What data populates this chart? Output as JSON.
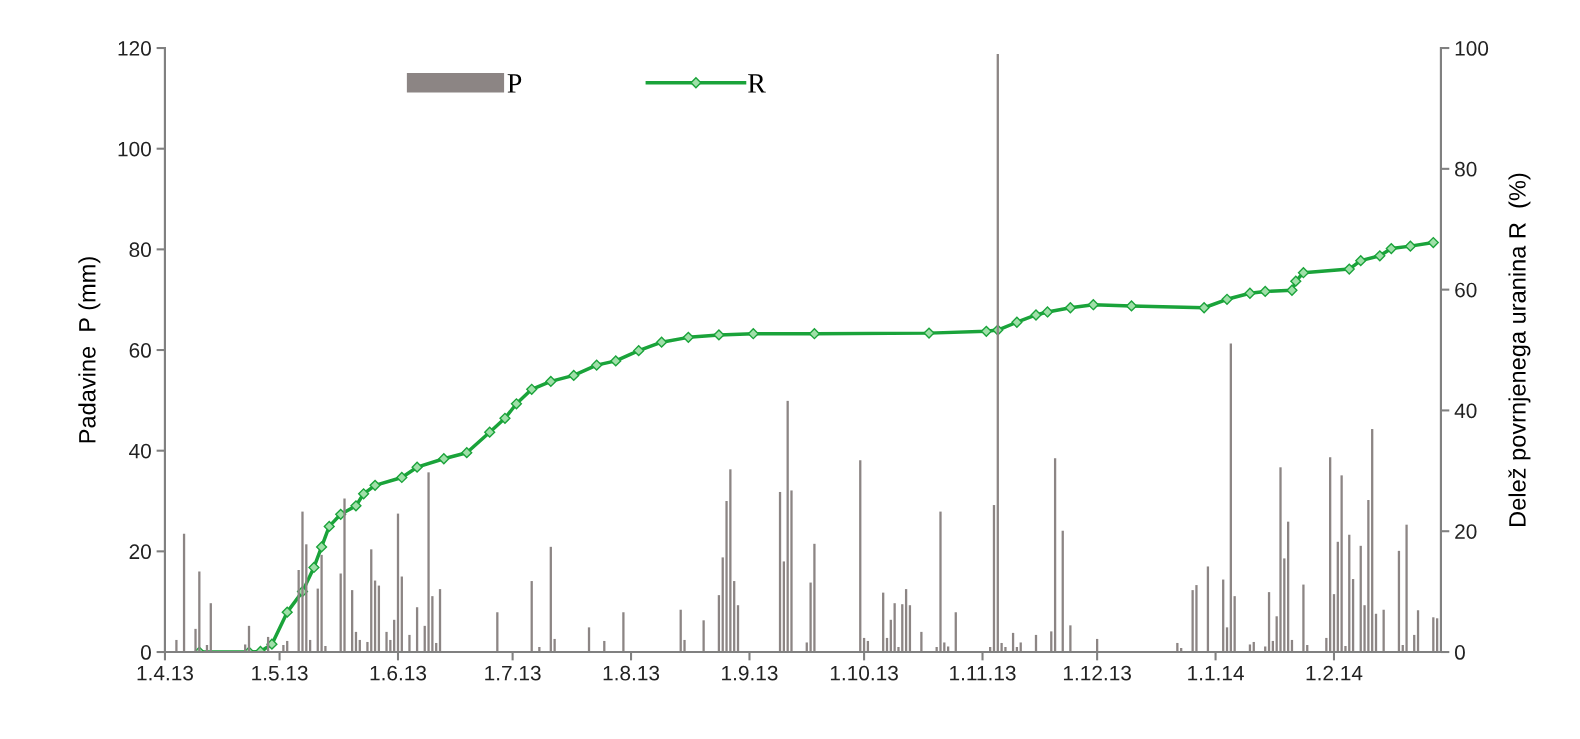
{
  "chart_data": {
    "type": "bar",
    "ylabel": "Padavine  P (mm)",
    "y2label": "Delež povrnjenega uranina R  (%)",
    "xlim": [
      "2013-04-01",
      "2014-03-01"
    ],
    "xticks": [
      {
        "value": "2013-04-01",
        "label": "1.4.13"
      },
      {
        "value": "2013-05-01",
        "label": "1.5.13"
      },
      {
        "value": "2013-06-01",
        "label": "1.6.13"
      },
      {
        "value": "2013-07-01",
        "label": "1.7.13"
      },
      {
        "value": "2013-08-01",
        "label": "1.8.13"
      },
      {
        "value": "2013-09-01",
        "label": "1.9.13"
      },
      {
        "value": "2013-10-01",
        "label": "1.10.13"
      },
      {
        "value": "2013-11-01",
        "label": "1.11.13"
      },
      {
        "value": "2013-12-01",
        "label": "1.12.13"
      },
      {
        "value": "2014-01-01",
        "label": "1.1.14"
      },
      {
        "value": "2014-02-01",
        "label": "1.2.14"
      }
    ],
    "ylim": [
      0,
      120
    ],
    "yticks": [
      0,
      20,
      40,
      60,
      80,
      100,
      120
    ],
    "y2lim": [
      0,
      100
    ],
    "y2ticks": [
      0,
      20,
      40,
      60,
      80,
      100
    ],
    "grid": false,
    "legend": "top left",
    "marker": "diamond",
    "line_style": "solid",
    "series": [
      {
        "name": "P",
        "color": "#8c8584",
        "x": [
          "2013-04-04",
          "2013-04-06",
          "2013-04-09",
          "2013-04-10",
          "2013-04-12",
          "2013-04-13",
          "2013-04-22",
          "2013-04-23",
          "2013-04-28",
          "2013-05-02",
          "2013-05-03",
          "2013-05-06",
          "2013-05-07",
          "2013-05-08",
          "2013-05-09",
          "2013-05-11",
          "2013-05-12",
          "2013-05-13",
          "2013-05-17",
          "2013-05-18",
          "2013-05-20",
          "2013-05-21",
          "2013-05-22",
          "2013-05-24",
          "2013-05-25",
          "2013-05-26",
          "2013-05-27",
          "2013-05-29",
          "2013-05-30",
          "2013-05-31",
          "2013-06-01",
          "2013-06-02",
          "2013-06-04",
          "2013-06-06",
          "2013-06-08",
          "2013-06-09",
          "2013-06-10",
          "2013-06-11",
          "2013-06-12",
          "2013-06-27",
          "2013-07-06",
          "2013-07-08",
          "2013-07-11",
          "2013-07-12",
          "2013-07-21",
          "2013-07-25",
          "2013-07-30",
          "2013-08-14",
          "2013-08-15",
          "2013-08-20",
          "2013-08-24",
          "2013-08-25",
          "2013-08-26",
          "2013-08-27",
          "2013-08-28",
          "2013-08-29",
          "2013-09-09",
          "2013-09-10",
          "2013-09-11",
          "2013-09-12",
          "2013-09-16",
          "2013-09-17",
          "2013-09-18",
          "2013-09-30",
          "2013-10-01",
          "2013-10-02",
          "2013-10-06",
          "2013-10-07",
          "2013-10-08",
          "2013-10-09",
          "2013-10-10",
          "2013-10-11",
          "2013-10-12",
          "2013-10-13",
          "2013-10-16",
          "2013-10-20",
          "2013-10-21",
          "2013-10-22",
          "2013-10-23",
          "2013-10-25",
          "2013-11-03",
          "2013-11-04",
          "2013-11-05",
          "2013-11-06",
          "2013-11-07",
          "2013-11-09",
          "2013-11-10",
          "2013-11-11",
          "2013-11-15",
          "2013-11-19",
          "2013-11-20",
          "2013-11-22",
          "2013-11-24",
          "2013-12-01",
          "2013-12-22",
          "2013-12-23",
          "2013-12-26",
          "2013-12-27",
          "2013-12-30",
          "2014-01-03",
          "2014-01-04",
          "2014-01-05",
          "2014-01-06",
          "2014-01-10",
          "2014-01-11",
          "2014-01-14",
          "2014-01-15",
          "2014-01-16",
          "2014-01-17",
          "2014-01-18",
          "2014-01-19",
          "2014-01-20",
          "2014-01-21",
          "2014-01-24",
          "2014-01-25",
          "2014-01-30",
          "2014-01-31",
          "2014-02-01",
          "2014-02-02",
          "2014-02-03",
          "2014-02-04",
          "2014-02-05",
          "2014-02-06",
          "2014-02-08",
          "2014-02-09",
          "2014-02-10",
          "2014-02-11",
          "2014-02-12",
          "2014-02-14",
          "2014-02-18",
          "2014-02-19",
          "2014-02-20",
          "2014-02-22",
          "2014-02-23",
          "2014-02-27",
          "2014-02-28"
        ],
        "values": [
          2.4,
          23.5,
          4.6,
          16.0,
          1.4,
          9.7,
          1.5,
          5.2,
          3.0,
          1.4,
          2.2,
          16.3,
          27.9,
          21.4,
          2.4,
          12.6,
          19.3,
          1.2,
          15.6,
          30.5,
          12.3,
          4.0,
          2.4,
          2.0,
          20.4,
          14.2,
          13.2,
          4.0,
          2.4,
          6.4,
          27.5,
          15.0,
          3.4,
          8.9,
          5.2,
          35.7,
          11.1,
          1.8,
          12.5,
          7.9,
          14.1,
          1.0,
          20.9,
          2.6,
          4.9,
          2.2,
          7.9,
          8.4,
          2.4,
          6.3,
          11.3,
          18.8,
          30.0,
          36.3,
          14.1,
          9.3,
          31.8,
          18.0,
          49.9,
          32.1,
          1.9,
          13.8,
          21.5,
          38.1,
          2.8,
          2.2,
          11.8,
          2.8,
          6.4,
          9.7,
          1.0,
          9.5,
          12.5,
          9.3,
          4.0,
          1.0,
          27.9,
          1.9,
          1.1,
          7.9,
          1.0,
          29.2,
          118.8,
          1.8,
          1.0,
          3.8,
          1.0,
          1.9,
          3.4,
          4.1,
          38.5,
          24.1,
          5.3,
          2.6,
          1.8,
          0.8,
          12.3,
          13.3,
          17.0,
          14.4,
          4.9,
          61.3,
          11.1,
          1.5,
          2.0,
          1.1,
          11.9,
          2.2,
          7.1,
          36.7,
          18.6,
          25.9,
          2.4,
          13.4,
          1.4,
          2.8,
          38.7,
          11.5,
          21.9,
          35.1,
          1.2,
          23.3,
          14.5,
          21.1,
          9.3,
          30.2,
          44.3,
          7.6,
          8.4,
          20.1,
          1.4,
          25.3,
          3.4,
          8.3,
          6.9,
          6.7
        ]
      },
      {
        "name": "R",
        "type": "line",
        "axis": "y2",
        "color": "#1aa33a",
        "x": [
          "2013-04-10",
          "2013-04-23",
          "2013-04-26",
          "2013-04-29",
          "2013-05-03",
          "2013-05-07",
          "2013-05-10",
          "2013-05-12",
          "2013-05-14",
          "2013-05-17",
          "2013-05-21",
          "2013-05-23",
          "2013-05-26",
          "2013-06-02",
          "2013-06-06",
          "2013-06-13",
          "2013-06-19",
          "2013-06-25",
          "2013-06-29",
          "2013-07-02",
          "2013-07-06",
          "2013-07-11",
          "2013-07-17",
          "2013-07-23",
          "2013-07-28",
          "2013-08-03",
          "2013-08-09",
          "2013-08-16",
          "2013-08-24",
          "2013-09-02",
          "2013-09-18",
          "2013-10-18",
          "2013-11-02",
          "2013-11-05",
          "2013-11-10",
          "2013-11-15",
          "2013-11-18",
          "2013-11-24",
          "2013-11-30",
          "2013-12-10",
          "2013-12-29",
          "2014-01-04",
          "2014-01-10",
          "2014-01-14",
          "2014-01-21",
          "2014-01-22",
          "2014-01-24",
          "2014-02-05",
          "2014-02-08",
          "2014-02-13",
          "2014-02-16",
          "2014-02-21",
          "2014-02-27"
        ],
        "values": [
          0,
          0,
          0.1,
          1.3,
          6.6,
          10.0,
          14.0,
          17.4,
          20.8,
          22.8,
          24.2,
          26.2,
          27.6,
          28.9,
          30.6,
          32.0,
          33.0,
          36.4,
          38.7,
          41.1,
          43.5,
          44.8,
          45.8,
          47.5,
          48.2,
          49.9,
          51.3,
          52.1,
          52.5,
          52.7,
          52.7,
          52.8,
          53.1,
          53.3,
          54.6,
          55.8,
          56.3,
          57.0,
          57.5,
          57.3,
          57.0,
          58.4,
          59.4,
          59.7,
          59.9,
          61.4,
          62.8,
          63.4,
          64.8,
          65.6,
          66.8,
          67.2,
          67.8
        ]
      }
    ]
  }
}
